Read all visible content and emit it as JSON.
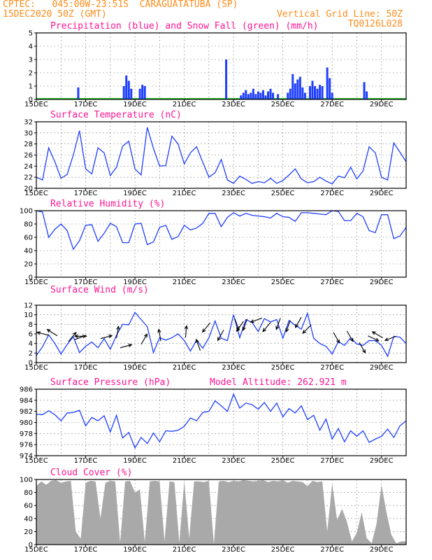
{
  "header": {
    "line1": "CPTEC:   045:00W-23:51S  CARAGUATATUBA (SP)",
    "line2": "15DEC2020 50Z (GMT)",
    "grid_note": "Vertical Grid Line: 50Z",
    "code": "TQ0126L028"
  },
  "colors": {
    "header": "#ff8c1a",
    "title": "#ff1493",
    "line": "#1f3fff",
    "precip": "#1f3fff",
    "snow": "#00b000",
    "cloud": "#a9a9a9",
    "arrow": "#000000"
  },
  "chart_data": [
    {
      "type": "bar",
      "title": "Precipitation (blue) and Snow Fall (green) (mm/h)",
      "xticks": [
        "15DEC",
        "17DEC",
        "19DEC",
        "21DEC",
        "23DEC",
        "25DEC",
        "27DEC",
        "29DEC"
      ],
      "ylim": [
        0,
        5
      ],
      "yticks": [
        0,
        1,
        2,
        3,
        4,
        5
      ],
      "x_days": [
        1.7,
        3.55,
        3.65,
        3.75,
        3.85,
        4.2,
        4.3,
        4.4,
        7.7,
        8.3,
        8.4,
        8.5,
        8.6,
        8.7,
        8.8,
        8.9,
        9.0,
        9.1,
        9.2,
        9.3,
        9.4,
        9.5,
        9.6,
        9.8,
        10.2,
        10.3,
        10.4,
        10.5,
        10.6,
        10.7,
        10.8,
        10.9,
        11.1,
        11.2,
        11.3,
        11.4,
        11.5,
        11.6,
        11.8,
        11.9,
        12.0,
        13.3,
        13.4
      ],
      "values": [
        0.9,
        1.0,
        1.8,
        1.4,
        0.8,
        0.8,
        1.1,
        1.0,
        3.0,
        0.3,
        0.5,
        0.7,
        0.4,
        0.5,
        0.8,
        0.4,
        0.6,
        0.5,
        0.7,
        0.3,
        0.6,
        0.8,
        0.5,
        0.4,
        0.5,
        0.8,
        1.9,
        1.2,
        1.5,
        1.7,
        0.9,
        0.5,
        1.0,
        1.4,
        1.0,
        0.8,
        1.1,
        1.0,
        2.4,
        1.6,
        0.5,
        1.3,
        0.6
      ]
    },
    {
      "type": "line",
      "title": "Surface Temperature (nC)",
      "xticks": [
        "15DEC",
        "17DEC",
        "19DEC",
        "21DEC",
        "23DEC",
        "25DEC",
        "27DEC",
        "29DEC"
      ],
      "ylim": [
        20,
        32
      ],
      "yticks": [
        20,
        22,
        24,
        26,
        28,
        30,
        32
      ],
      "x_days": [
        0.0,
        0.25,
        0.5,
        0.75,
        1.0,
        1.25,
        1.5,
        1.75,
        2.0,
        2.25,
        2.5,
        2.75,
        3.0,
        3.25,
        3.5,
        3.75,
        4.0,
        4.25,
        4.5,
        4.75,
        5.0,
        5.25,
        5.5,
        5.75,
        6.0,
        6.25,
        6.5,
        6.75,
        7.0,
        7.25,
        7.5,
        7.75,
        8.0,
        8.25,
        8.5,
        8.75,
        9.0,
        9.25,
        9.5,
        9.75,
        10.0,
        10.25,
        10.5,
        10.75,
        11.0,
        11.25,
        11.5,
        11.75,
        12.0,
        12.25,
        12.5,
        12.75,
        13.0,
        13.25,
        13.5,
        13.75,
        14.0,
        14.25,
        14.5,
        14.75,
        15.0
      ],
      "values": [
        22.0,
        21.5,
        27.3,
        24.8,
        21.8,
        22.5,
        26.0,
        30.4,
        23.5,
        22.6,
        27.3,
        26.4,
        22.3,
        23.8,
        27.6,
        28.5,
        23.5,
        22.4,
        31.0,
        27.2,
        24.0,
        24.1,
        29.4,
        28.0,
        24.4,
        26.4,
        27.5,
        24.7,
        22.0,
        22.8,
        25.2,
        21.5,
        20.9,
        22.2,
        21.6,
        20.9,
        21.2,
        21.0,
        21.8,
        20.9,
        21.4,
        22.4,
        23.5,
        21.7,
        21.0,
        21.2,
        22.0,
        21.3,
        20.8,
        22.2,
        21.9,
        23.8,
        21.7,
        23.1,
        27.5,
        26.4,
        22.0,
        21.5,
        28.2,
        26.5,
        24.8
      ]
    },
    {
      "type": "line",
      "title": "Relative Humidity (%)",
      "xticks": [
        "15DEC",
        "17DEC",
        "19DEC",
        "21DEC",
        "23DEC",
        "25DEC",
        "27DEC",
        "29DEC"
      ],
      "ylim": [
        0,
        100
      ],
      "yticks": [
        0,
        20,
        40,
        60,
        80,
        100
      ],
      "x_days": [
        0.0,
        0.25,
        0.5,
        0.75,
        1.0,
        1.25,
        1.5,
        1.75,
        2.0,
        2.25,
        2.5,
        2.75,
        3.0,
        3.25,
        3.5,
        3.75,
        4.0,
        4.25,
        4.5,
        4.75,
        5.0,
        5.25,
        5.5,
        5.75,
        6.0,
        6.25,
        6.5,
        6.75,
        7.0,
        7.25,
        7.5,
        7.75,
        8.0,
        8.25,
        8.5,
        8.75,
        9.0,
        9.25,
        9.5,
        9.75,
        10.0,
        10.25,
        10.5,
        10.75,
        11.0,
        11.25,
        11.5,
        11.75,
        12.0,
        12.25,
        12.5,
        12.75,
        13.0,
        13.25,
        13.5,
        13.75,
        14.0,
        14.25,
        14.5,
        14.75,
        15.0
      ],
      "values": [
        100,
        98,
        60,
        72,
        80,
        70,
        42,
        55,
        78,
        79,
        54,
        66,
        81,
        76,
        52,
        52,
        80,
        81,
        49,
        53,
        75,
        78,
        57,
        61,
        78,
        71,
        74,
        81,
        96,
        96,
        76,
        90,
        97,
        92,
        96,
        93,
        92,
        91,
        89,
        96,
        91,
        90,
        84,
        97,
        97,
        96,
        95,
        94,
        100,
        99,
        85,
        85,
        96,
        91,
        70,
        67,
        94,
        94,
        58,
        62,
        75
      ]
    },
    {
      "type": "line",
      "title": "Surface Wind (m/s)",
      "xticks": [
        "15DEC",
        "17DEC",
        "19DEC",
        "21DEC",
        "23DEC",
        "25DEC",
        "27DEC",
        "29DEC"
      ],
      "ylim": [
        0,
        12
      ],
      "yticks": [
        0,
        2,
        4,
        6,
        8,
        10,
        12
      ],
      "x_days": [
        0.0,
        0.25,
        0.5,
        0.75,
        1.0,
        1.25,
        1.5,
        1.75,
        2.0,
        2.25,
        2.5,
        2.75,
        3.0,
        3.25,
        3.5,
        3.75,
        4.0,
        4.25,
        4.5,
        4.75,
        5.0,
        5.25,
        5.5,
        5.75,
        6.0,
        6.25,
        6.5,
        6.75,
        7.0,
        7.25,
        7.5,
        7.75,
        8.0,
        8.25,
        8.5,
        8.75,
        9.0,
        9.25,
        9.5,
        9.75,
        10.0,
        10.25,
        10.5,
        10.75,
        11.0,
        11.25,
        11.5,
        11.75,
        12.0,
        12.25,
        12.5,
        12.75,
        13.0,
        13.25,
        13.5,
        13.75,
        14.0,
        14.25,
        14.5,
        14.75,
        15.0
      ],
      "values": [
        1.5,
        3.3,
        5.8,
        4.0,
        1.8,
        3.8,
        5.4,
        2.1,
        3.4,
        4.3,
        3.1,
        5.0,
        2.8,
        5.7,
        8.0,
        7.9,
        10.5,
        9.0,
        7.5,
        2.1,
        5.2,
        4.7,
        5.2,
        6.0,
        4.6,
        2.4,
        4.7,
        3.0,
        5.2,
        8.7,
        5.1,
        4.6,
        10.0,
        5.2,
        9.0,
        8.4,
        6.5,
        9.2,
        8.5,
        9.0,
        5.1,
        8.8,
        7.8,
        7.0,
        10.3,
        5.1,
        4.0,
        3.4,
        1.8,
        4.4,
        3.6,
        5.2,
        3.9,
        3.6,
        4.6,
        4.6,
        3.6,
        1.3,
        5.5,
        5.3,
        4.0
      ],
      "arrows": {
        "x_days": [
          0.5,
          0.85,
          1.3,
          1.55,
          2.05,
          2.6,
          3.25,
          3.4,
          4.25,
          5.05,
          6.05,
          6.65,
          7.05,
          7.6,
          8.05,
          8.4,
          8.55,
          9.15,
          9.5,
          9.9,
          10.3,
          10.75,
          11.15,
          12.05,
          12.6,
          13.1,
          13.45,
          14.05,
          14.6
        ],
        "speeds": [
          5.7,
          5.6,
          4.4,
          4.8,
          5.5,
          5.0,
          5.1,
          3.1,
          3.8,
          4.5,
          5.2,
          2.5,
          8.3,
          6.8,
          9.2,
          8.6,
          9.1,
          9.3,
          8.4,
          9.3,
          8.8,
          9.5,
          7.9,
          6.3,
          6.6,
          4.2,
          5.6,
          5.2,
          5.5
        ],
        "dirs_deg": [
          165,
          148,
          50,
          20,
          180,
          15,
          80,
          15,
          60,
          100,
          85,
          110,
          230,
          240,
          290,
          235,
          250,
          200,
          230,
          250,
          250,
          240,
          225,
          300,
          300,
          300,
          335,
          150,
          200
        ]
      }
    },
    {
      "type": "line",
      "title": "Surface Pressure (hPa)",
      "annotation": "Model Altitude: 262.921  m",
      "xticks": [
        "15DEC",
        "17DEC",
        "19DEC",
        "21DEC",
        "23DEC",
        "25DEC",
        "27DEC",
        "29DEC"
      ],
      "ylim": [
        974,
        986
      ],
      "yticks": [
        974,
        976,
        978,
        980,
        982,
        984,
        986
      ],
      "x_days": [
        0.0,
        0.25,
        0.5,
        0.75,
        1.0,
        1.25,
        1.5,
        1.75,
        2.0,
        2.25,
        2.5,
        2.75,
        3.0,
        3.25,
        3.5,
        3.75,
        4.0,
        4.25,
        4.5,
        4.75,
        5.0,
        5.25,
        5.5,
        5.75,
        6.0,
        6.25,
        6.5,
        6.75,
        7.0,
        7.25,
        7.5,
        7.75,
        8.0,
        8.25,
        8.5,
        8.75,
        9.0,
        9.25,
        9.5,
        9.75,
        10.0,
        10.25,
        10.5,
        10.75,
        11.0,
        11.25,
        11.5,
        11.75,
        12.0,
        12.25,
        12.5,
        12.75,
        13.0,
        13.25,
        13.5,
        13.75,
        14.0,
        14.25,
        14.5,
        14.75,
        15.0
      ],
      "values": [
        981.5,
        981.4,
        982.1,
        981.4,
        980.3,
        981.7,
        981.8,
        982.2,
        979.4,
        980.9,
        980.3,
        981.2,
        978.3,
        981.3,
        977.2,
        978.2,
        975.4,
        977.3,
        976.2,
        978.1,
        976.5,
        978.5,
        978.4,
        978.6,
        979.3,
        980.8,
        980.3,
        981.8,
        982.0,
        983.9,
        983.0,
        982.0,
        985.1,
        982.6,
        983.5,
        983.2,
        982.4,
        983.6,
        982.0,
        983.5,
        981.0,
        982.5,
        981.7,
        983.0,
        980.5,
        981.3,
        978.6,
        980.6,
        977.0,
        978.9,
        976.5,
        978.5,
        977.5,
        978.5,
        976.4,
        977.0,
        977.5,
        978.8,
        977.3,
        979.4,
        980.3
      ]
    },
    {
      "type": "area",
      "title": "Cloud Cover (%)",
      "xticks": [
        "15DEC",
        "17DEC",
        "19DEC",
        "21DEC",
        "23DEC",
        "25DEC",
        "27DEC",
        "29DEC"
      ],
      "ylim": [
        0,
        100
      ],
      "yticks": [
        0,
        20,
        40,
        60,
        80,
        100
      ],
      "x_days": [
        0.0,
        0.2,
        0.4,
        0.6,
        0.8,
        1.0,
        1.2,
        1.4,
        1.6,
        1.8,
        2.0,
        2.2,
        2.4,
        2.6,
        2.8,
        3.0,
        3.2,
        3.4,
        3.6,
        3.8,
        4.0,
        4.2,
        4.4,
        4.6,
        4.8,
        5.0,
        5.2,
        5.4,
        5.6,
        5.8,
        6.0,
        6.2,
        6.4,
        6.6,
        6.8,
        7.0,
        7.2,
        7.4,
        7.6,
        7.8,
        8.0,
        8.2,
        8.4,
        8.6,
        8.8,
        9.0,
        9.2,
        9.4,
        9.6,
        9.8,
        10.0,
        10.2,
        10.4,
        10.6,
        10.8,
        11.0,
        11.2,
        11.4,
        11.6,
        11.8,
        12.0,
        12.2,
        12.4,
        12.6,
        12.8,
        13.0,
        13.2,
        13.4,
        13.6,
        13.8,
        14.0,
        14.2,
        14.4,
        14.6,
        14.8,
        15.0
      ],
      "values": [
        90,
        97,
        92,
        98,
        99,
        95,
        97,
        98,
        20,
        9,
        95,
        98,
        97,
        40,
        95,
        98,
        97,
        3,
        97,
        98,
        80,
        85,
        4,
        97,
        98,
        97,
        5,
        97,
        96,
        3,
        98,
        10,
        97,
        97,
        96,
        98,
        1,
        97,
        98,
        96,
        98,
        97,
        99,
        98,
        97,
        98,
        99,
        96,
        98,
        97,
        99,
        95,
        98,
        97,
        96,
        90,
        98,
        96,
        97,
        20,
        94,
        38,
        55,
        35,
        5,
        18,
        50,
        10,
        2,
        32,
        92,
        50,
        15,
        2,
        5,
        5
      ]
    }
  ]
}
